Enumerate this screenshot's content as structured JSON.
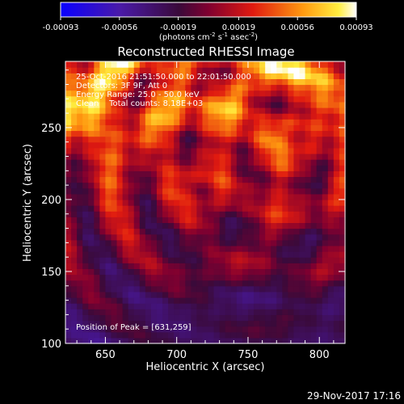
{
  "chart_data": {
    "type": "heatmap",
    "title": "Reconstructed RHESSI Image",
    "xlabel": "Heliocentric X (arcsec)",
    "ylabel": "Heliocentric Y (arcsec)",
    "xlim": [
      622,
      818
    ],
    "ylim": [
      100,
      296
    ],
    "x_ticks": [
      650,
      700,
      750,
      800
    ],
    "y_ticks": [
      100,
      150,
      200,
      250
    ],
    "colorbar": {
      "range": [
        -0.00093,
        0.00093
      ],
      "ticks": [
        "-0.00093",
        "-0.00056",
        "-0.00019",
        "0.00019",
        "0.00056",
        "0.00093"
      ],
      "unit_base": "(photons cm",
      "unit_exp1": "-2",
      "unit_mid": " s",
      "unit_exp2": "-1",
      "unit_mid2": " asec",
      "unit_exp3": "-2",
      "unit_end": ")",
      "colormap": "blue-purple-red-orange-yellow-white"
    },
    "annotations": [
      "25-Oct-2016 21:51:50.000 to 22:01:50.000",
      "Detectors: 3F 9F, Att 0",
      "Energy Range: 25.0 - 50.0 keV",
      "Clean    Total counts: 8.18E+03"
    ],
    "peak_label": "Position of Peak = [631,259]",
    "peak": [
      631,
      259
    ],
    "pixel_size_arcsec": 4
  },
  "footer": {
    "timestamp": "29-Nov-2017 17:16"
  }
}
